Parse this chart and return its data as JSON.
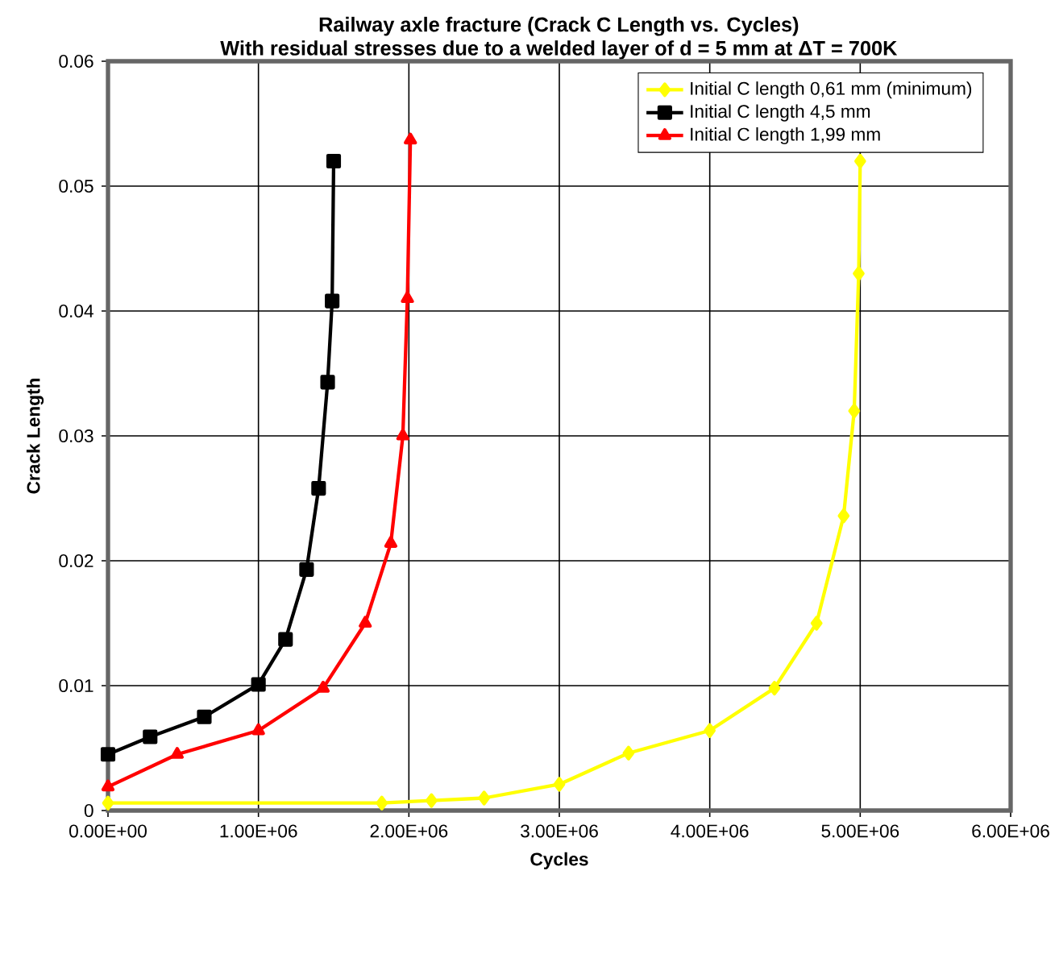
{
  "chart_data": {
    "type": "line",
    "title": "Railway axle fracture  (Crack C Length vs. Cycles)",
    "subtitle": "With residual stresses due to a welded layer of d = 5 mm at ΔT = 700K",
    "xlabel": "Cycles",
    "ylabel": "Crack Length",
    "xlim": [
      0,
      6000000
    ],
    "ylim": [
      0,
      0.06
    ],
    "xticks": [
      {
        "value": 0,
        "label": "0.00E+00"
      },
      {
        "value": 1000000,
        "label": "1.00E+06"
      },
      {
        "value": 2000000,
        "label": "2.00E+06"
      },
      {
        "value": 3000000,
        "label": "3.00E+06"
      },
      {
        "value": 4000000,
        "label": "4.00E+06"
      },
      {
        "value": 5000000,
        "label": "5.00E+06"
      },
      {
        "value": 6000000,
        "label": "6.00E+06"
      }
    ],
    "yticks": [
      0,
      0.01,
      0.02,
      0.03,
      0.04,
      0.05,
      0.06
    ],
    "grid": true,
    "legend": "top right",
    "series": [
      {
        "name": "Initial C length 0,61 mm (minimum)",
        "color": "#ffff00",
        "marker": "diamond",
        "x": [
          0,
          1820000,
          2150000,
          2500000,
          3000000,
          3460000,
          4000000,
          4430000,
          4710000,
          4890000,
          4960000,
          4990000,
          5000000
        ],
        "values": [
          0.0006,
          0.0006,
          0.0008,
          0.001,
          0.0021,
          0.0046,
          0.0064,
          0.0098,
          0.015,
          0.0236,
          0.032,
          0.043,
          0.052
        ]
      },
      {
        "name": "Initial C length 4,5 mm",
        "color": "#000000",
        "marker": "square",
        "x": [
          0,
          280000,
          640000,
          1000000,
          1180000,
          1320000,
          1400000,
          1460000,
          1490000,
          1500000
        ],
        "values": [
          0.0045,
          0.0059,
          0.0075,
          0.0101,
          0.0137,
          0.0193,
          0.0258,
          0.0343,
          0.0408,
          0.052
        ]
      },
      {
        "name": "Initial C length 1,99 mm",
        "color": "#ff0000",
        "marker": "triangle",
        "x": [
          0,
          460000,
          1000000,
          1430000,
          1710000,
          1880000,
          1960000,
          1990000,
          2010000
        ],
        "values": [
          0.0019,
          0.0045,
          0.0064,
          0.0098,
          0.015,
          0.0214,
          0.03,
          0.041,
          0.0537
        ]
      }
    ]
  }
}
